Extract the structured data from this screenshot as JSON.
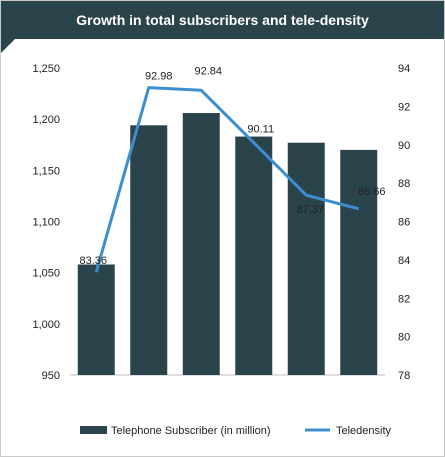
{
  "title": "Growth in total subscribers and tele-density",
  "colors": {
    "bar": "#2b434a",
    "line": "#3b8fd0",
    "header": "#2b434a"
  },
  "chart_data": {
    "type": "bar+line",
    "categories": [
      "",
      "",
      "",
      "",
      "",
      ""
    ],
    "series": [
      {
        "name": "Telephone Subscriber (in million)",
        "type": "bar",
        "axis": "left",
        "values": [
          1058,
          1194,
          1206,
          1183,
          1177,
          1170
        ]
      },
      {
        "name": "Teledensity",
        "type": "line",
        "axis": "right",
        "values": [
          83.36,
          92.98,
          92.84,
          90.11,
          87.37,
          86.66
        ],
        "labels": [
          "83.36",
          "92.98",
          "92.84",
          "90.11",
          "87.37",
          "86.66"
        ]
      }
    ],
    "y_left": {
      "min": 950,
      "max": 1250,
      "ticks": [
        "950",
        "1,000",
        "1,050",
        "1,100",
        "1,150",
        "1,200",
        "1,250"
      ]
    },
    "y_right": {
      "min": 78,
      "max": 94,
      "ticks": [
        "78",
        "80",
        "82",
        "84",
        "86",
        "88",
        "90",
        "92",
        "94"
      ]
    },
    "legend": {
      "position": "bottom"
    }
  }
}
